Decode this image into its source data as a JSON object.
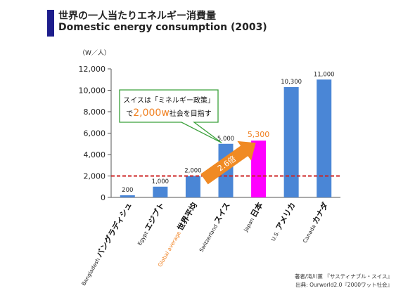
{
  "header": {
    "title_jp": "世界の一人当たりエネルギー消費量",
    "title_en": "Domestic energy consumption (2003)"
  },
  "chart_data": {
    "type": "bar",
    "unit_label": "（W／人）",
    "categories": [
      {
        "en": "Bangladesh",
        "jp": "バングラディシュ"
      },
      {
        "en": "Egypt",
        "jp": "エジプト"
      },
      {
        "en": "Global average",
        "jp": "世界平均"
      },
      {
        "en": "Switzerland",
        "jp": "スイス"
      },
      {
        "en": "Japan",
        "jp": "日本"
      },
      {
        "en": "U.S.",
        "jp": "アメリカ"
      },
      {
        "en": "Canada",
        "jp": "カナダ"
      }
    ],
    "values": [
      200,
      1000,
      2000,
      5000,
      5300,
      10300,
      11000
    ],
    "data_labels": [
      "200",
      "1,000",
      "2,000",
      "5,000",
      "5,300",
      "10,300",
      "11,000"
    ],
    "bar_colors": [
      "#4a86d6",
      "#4a86d6",
      "#4a86d6",
      "#4a86d6",
      "#ff00ff",
      "#4a86d6",
      "#4a86d6"
    ],
    "highlight_label_color": "#f08020",
    "highlight_category_color": "#f08020",
    "yticks": [
      "0",
      "2,000",
      "4,000",
      "6,000",
      "8,000",
      "10,000",
      "12,000"
    ],
    "ylim": [
      0,
      12000
    ],
    "reference_line": {
      "value": 2000,
      "color": "#cc2222",
      "style": "dashed"
    },
    "arrow": {
      "label": "2.6倍",
      "color": "#f08a24",
      "from": "Global average",
      "to": "Japan"
    },
    "callout": {
      "line1": "スイスは「ミネルギー政策」",
      "line2_prefix": "で",
      "line2_highlight": "2,000w",
      "line2_suffix": "社会を目指す",
      "border_color": "#3aa03a",
      "highlight_color": "#f08020"
    },
    "grid": false
  },
  "footer": {
    "credit_line1": "著者/滝川薫 『サスティナブル・スイス』",
    "credit_line2": "出典: Ourworld2.0『2000ワット社会』"
  }
}
